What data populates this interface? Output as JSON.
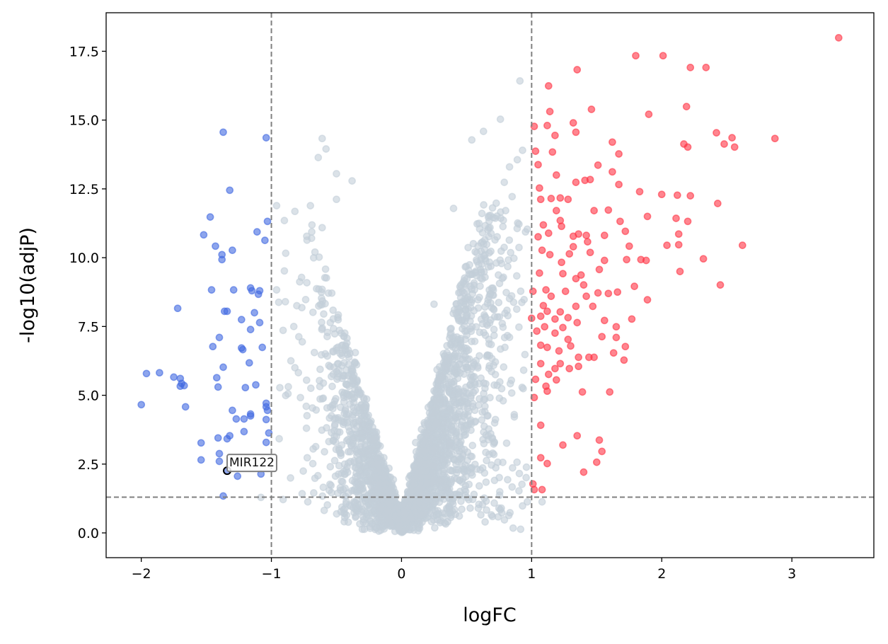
{
  "chart_data": {
    "type": "scatter",
    "title": "",
    "xlabel": "logFC",
    "ylabel": "-log10(adjP)",
    "xlim": [
      -2.27,
      3.63
    ],
    "ylim": [
      -0.9,
      18.9
    ],
    "xticks": [
      -2,
      -1,
      0,
      1,
      2,
      3
    ],
    "xtick_labels": [
      "−2",
      "−1",
      "0",
      "1",
      "2",
      "3"
    ],
    "yticks": [
      0,
      2.5,
      5,
      7.5,
      10,
      12.5,
      15,
      17.5
    ],
    "ytick_labels": [
      "0.0",
      "2.5",
      "5.0",
      "7.5",
      "10.0",
      "12.5",
      "15.0",
      "17.5"
    ],
    "grid": false,
    "thresholds": {
      "logFC": [
        -1,
        1
      ],
      "neg_log10_adjP": 1.3
    },
    "colors": {
      "down": "#4169e1",
      "up": "#ff3344",
      "ns": "#c3ced8",
      "threshold_line": "#808080",
      "highlight_edge": "#000000"
    },
    "annotation": {
      "label": "MIR122",
      "x": -1.34,
      "y": 2.26
    },
    "series": [
      {
        "name": "down",
        "points": [
          [
            -1.37,
            14.56
          ],
          [
            -1.04,
            14.36
          ],
          [
            -1.32,
            12.45
          ],
          [
            -1.47,
            11.48
          ],
          [
            -1.03,
            11.32
          ],
          [
            -1.52,
            10.83
          ],
          [
            -1.11,
            10.94
          ],
          [
            -1.05,
            10.63
          ],
          [
            -1.43,
            10.42
          ],
          [
            -1.3,
            10.27
          ],
          [
            -1.38,
            10.11
          ],
          [
            -1.38,
            9.93
          ],
          [
            -1.46,
            8.83
          ],
          [
            -1.29,
            8.83
          ],
          [
            -1.16,
            8.9
          ],
          [
            -1.15,
            8.8
          ],
          [
            -1.09,
            8.8
          ],
          [
            -1.1,
            8.67
          ],
          [
            -1.72,
            8.16
          ],
          [
            -1.36,
            8.05
          ],
          [
            -1.34,
            8.05
          ],
          [
            -1.13,
            8.0
          ],
          [
            -1.23,
            7.75
          ],
          [
            -1.09,
            7.64
          ],
          [
            -1.4,
            7.1
          ],
          [
            -1.16,
            7.39
          ],
          [
            -1.45,
            6.77
          ],
          [
            -1.23,
            6.72
          ],
          [
            -1.22,
            6.66
          ],
          [
            -1.07,
            6.74
          ],
          [
            -1.37,
            6.02
          ],
          [
            -1.17,
            6.18
          ],
          [
            -1.42,
            5.64
          ],
          [
            -1.12,
            5.38
          ],
          [
            -1.96,
            5.79
          ],
          [
            -1.86,
            5.82
          ],
          [
            -1.75,
            5.66
          ],
          [
            -1.7,
            5.61
          ],
          [
            -1.69,
            5.43
          ],
          [
            -1.7,
            5.33
          ],
          [
            -1.67,
            5.35
          ],
          [
            -1.41,
            5.3
          ],
          [
            -1.2,
            5.28
          ],
          [
            -1.04,
            4.71
          ],
          [
            -1.04,
            4.58
          ],
          [
            -1.03,
            4.45
          ],
          [
            -2.0,
            4.66
          ],
          [
            -1.66,
            4.58
          ],
          [
            -1.3,
            4.45
          ],
          [
            -1.16,
            4.32
          ],
          [
            -1.16,
            4.25
          ],
          [
            -1.27,
            4.14
          ],
          [
            -1.21,
            4.14
          ],
          [
            -1.04,
            4.12
          ],
          [
            -1.21,
            3.68
          ],
          [
            -1.32,
            3.53
          ],
          [
            -1.02,
            3.63
          ],
          [
            -1.34,
            3.42
          ],
          [
            -1.41,
            3.45
          ],
          [
            -1.04,
            3.29
          ],
          [
            -1.54,
            3.27
          ],
          [
            -1.4,
            2.88
          ],
          [
            -1.54,
            2.65
          ],
          [
            -1.4,
            2.6
          ],
          [
            -1.26,
            2.06
          ],
          [
            -1.08,
            2.14
          ],
          [
            -1.37,
            1.34
          ]
        ]
      },
      {
        "name": "up",
        "points": [
          [
            3.36,
            17.99
          ],
          [
            1.8,
            17.34
          ],
          [
            2.01,
            17.34
          ],
          [
            1.35,
            16.83
          ],
          [
            2.22,
            16.91
          ],
          [
            2.34,
            16.91
          ],
          [
            1.13,
            16.24
          ],
          [
            1.46,
            15.39
          ],
          [
            1.14,
            15.31
          ],
          [
            1.9,
            15.21
          ],
          [
            2.19,
            15.49
          ],
          [
            1.02,
            14.77
          ],
          [
            1.12,
            14.8
          ],
          [
            1.32,
            14.9
          ],
          [
            1.34,
            14.56
          ],
          [
            1.18,
            14.44
          ],
          [
            1.62,
            14.2
          ],
          [
            2.42,
            14.54
          ],
          [
            2.54,
            14.36
          ],
          [
            2.48,
            14.13
          ],
          [
            2.56,
            14.02
          ],
          [
            2.87,
            14.33
          ],
          [
            2.17,
            14.13
          ],
          [
            2.2,
            14.02
          ],
          [
            1.03,
            13.87
          ],
          [
            1.16,
            13.84
          ],
          [
            1.67,
            13.77
          ],
          [
            1.05,
            13.38
          ],
          [
            1.51,
            13.36
          ],
          [
            1.62,
            13.12
          ],
          [
            1.19,
            13.0
          ],
          [
            1.41,
            12.81
          ],
          [
            1.45,
            12.84
          ],
          [
            1.34,
            12.74
          ],
          [
            1.67,
            12.66
          ],
          [
            1.06,
            12.53
          ],
          [
            1.83,
            12.4
          ],
          [
            2.12,
            12.27
          ],
          [
            2.0,
            12.3
          ],
          [
            2.22,
            12.25
          ],
          [
            2.43,
            11.97
          ],
          [
            1.07,
            12.12
          ],
          [
            1.15,
            12.15
          ],
          [
            1.22,
            12.17
          ],
          [
            1.28,
            12.12
          ],
          [
            1.19,
            11.71
          ],
          [
            1.48,
            11.71
          ],
          [
            1.59,
            11.73
          ],
          [
            1.89,
            11.5
          ],
          [
            2.11,
            11.43
          ],
          [
            2.2,
            11.32
          ],
          [
            1.22,
            11.35
          ],
          [
            1.23,
            11.14
          ],
          [
            1.09,
            11.19
          ],
          [
            1.68,
            11.32
          ],
          [
            1.72,
            10.96
          ],
          [
            1.32,
            10.78
          ],
          [
            1.36,
            10.86
          ],
          [
            1.42,
            10.81
          ],
          [
            1.56,
            10.81
          ],
          [
            1.13,
            10.89
          ],
          [
            1.05,
            10.76
          ],
          [
            2.13,
            10.86
          ],
          [
            2.62,
            10.45
          ],
          [
            2.04,
            10.45
          ],
          [
            2.13,
            10.47
          ],
          [
            1.32,
            10.4
          ],
          [
            1.75,
            10.42
          ],
          [
            1.43,
            10.58
          ],
          [
            1.14,
            10.11
          ],
          [
            1.45,
            10.19
          ],
          [
            1.29,
            10.14
          ],
          [
            1.08,
            10.27
          ],
          [
            1.23,
            9.83
          ],
          [
            1.73,
            9.93
          ],
          [
            1.84,
            9.93
          ],
          [
            1.88,
            9.9
          ],
          [
            2.32,
            9.96
          ],
          [
            1.56,
            9.9
          ],
          [
            1.52,
            9.57
          ],
          [
            2.14,
            9.5
          ],
          [
            2.45,
            9.01
          ],
          [
            1.38,
            9.37
          ],
          [
            1.06,
            9.44
          ],
          [
            1.24,
            9.42
          ],
          [
            1.4,
            9.01
          ],
          [
            1.34,
            9.24
          ],
          [
            1.51,
            8.72
          ],
          [
            1.79,
            8.96
          ],
          [
            1.89,
            8.47
          ],
          [
            1.59,
            8.7
          ],
          [
            1.26,
            8.78
          ],
          [
            1.01,
            8.78
          ],
          [
            1.11,
            8.83
          ],
          [
            1.15,
            8.6
          ],
          [
            1.42,
            8.6
          ],
          [
            1.66,
            8.75
          ],
          [
            1.09,
            8.26
          ],
          [
            1.12,
            8.05
          ],
          [
            1.34,
            8.23
          ],
          [
            1.47,
            8.23
          ],
          [
            1.22,
            8.03
          ],
          [
            1.07,
            7.87
          ],
          [
            1.0,
            7.8
          ],
          [
            1.18,
            7.77
          ],
          [
            1.28,
            7.82
          ],
          [
            1.56,
            7.72
          ],
          [
            1.77,
            7.77
          ],
          [
            1.35,
            7.64
          ],
          [
            1.1,
            7.49
          ],
          [
            1.24,
            7.46
          ],
          [
            1.65,
            7.49
          ],
          [
            1.04,
            7.33
          ],
          [
            1.18,
            7.26
          ],
          [
            1.54,
            7.13
          ],
          [
            1.65,
            7.1
          ],
          [
            1.28,
            7.03
          ],
          [
            1.07,
            6.82
          ],
          [
            1.12,
            6.74
          ],
          [
            1.21,
            6.61
          ],
          [
            1.3,
            6.79
          ],
          [
            1.72,
            6.77
          ],
          [
            1.63,
            6.54
          ],
          [
            1.36,
            6.38
          ],
          [
            1.44,
            6.38
          ],
          [
            1.48,
            6.38
          ],
          [
            1.71,
            6.28
          ],
          [
            1.07,
            6.15
          ],
          [
            1.22,
            6.15
          ],
          [
            1.36,
            6.05
          ],
          [
            1.18,
            5.97
          ],
          [
            1.29,
            5.97
          ],
          [
            1.13,
            5.76
          ],
          [
            1.03,
            5.58
          ],
          [
            1.19,
            5.56
          ],
          [
            1.11,
            5.33
          ],
          [
            1.12,
            5.15
          ],
          [
            1.39,
            5.12
          ],
          [
            1.6,
            5.12
          ],
          [
            1.02,
            4.92
          ],
          [
            1.07,
            3.91
          ],
          [
            1.35,
            3.53
          ],
          [
            1.52,
            3.37
          ],
          [
            1.54,
            2.96
          ],
          [
            1.24,
            3.19
          ],
          [
            1.07,
            2.73
          ],
          [
            1.12,
            2.52
          ],
          [
            1.5,
            2.57
          ],
          [
            1.4,
            2.21
          ],
          [
            1.01,
            1.78
          ],
          [
            1.02,
            1.57
          ],
          [
            1.08,
            1.57
          ]
        ]
      },
      {
        "name": "ns",
        "points": [
          [
            0.91,
            16.42
          ],
          [
            0.76,
            15.03
          ],
          [
            0.63,
            14.59
          ],
          [
            -0.61,
            14.33
          ],
          [
            -0.58,
            13.95
          ],
          [
            0.54,
            14.28
          ],
          [
            -0.64,
            13.64
          ],
          [
            -0.5,
            13.05
          ],
          [
            -0.38,
            12.79
          ],
          [
            -0.7,
            11.89
          ],
          [
            -0.96,
            11.89
          ],
          [
            -0.5,
            12.12
          ],
          [
            -0.9,
            11.35
          ],
          [
            0.4,
            11.79
          ],
          [
            -0.61,
            11.09
          ],
          [
            -0.69,
            10.94
          ],
          [
            -0.89,
            10.16
          ],
          [
            -0.9,
            9.52
          ],
          [
            -0.96,
            8.83
          ],
          [
            0.83,
            13.3
          ],
          [
            0.93,
            13.9
          ],
          [
            0.89,
            13.56
          ],
          [
            0.79,
            12.74
          ],
          [
            0.85,
            12.22
          ],
          [
            0.8,
            11.71
          ],
          [
            0.25,
            8.31
          ],
          [
            -0.91,
            7.36
          ],
          [
            -0.85,
            6.25
          ],
          [
            -0.89,
            4.99
          ],
          [
            -0.94,
            3.42
          ],
          [
            -0.91,
            1.21
          ],
          [
            -0.72,
            1.13
          ],
          [
            -1.08,
            1.29
          ],
          [
            0.93,
            0.98
          ],
          [
            1.08,
            1.13
          ],
          [
            0.85,
            1.67
          ],
          [
            0.96,
            2.39
          ]
        ],
        "dense_cloud": {
          "count": 3200,
          "seed": 7
        }
      }
    ]
  }
}
